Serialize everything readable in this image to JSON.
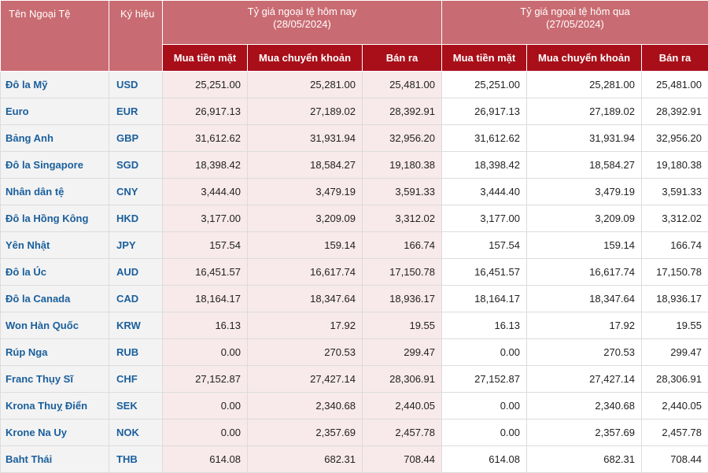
{
  "header": {
    "currency_name": "Tên Ngoại Tệ",
    "symbol": "Ký hiệu",
    "today_title": "Tỷ giá ngoại tệ hôm nay",
    "today_date": "(28/05/2024)",
    "yesterday_title": "Tỷ giá ngoại tệ hôm qua",
    "yesterday_date": "(27/05/2024)",
    "cash_buy": "Mua tiền mặt",
    "transfer_buy": "Mua chuyển khoản",
    "sell": "Bán ra"
  },
  "rows": [
    {
      "name": "Đô la Mỹ",
      "code": "USD",
      "today": [
        "25,251.00",
        "25,281.00",
        "25,481.00"
      ],
      "yesterday": [
        "25,251.00",
        "25,281.00",
        "25,481.00"
      ]
    },
    {
      "name": "Euro",
      "code": "EUR",
      "today": [
        "26,917.13",
        "27,189.02",
        "28,392.91"
      ],
      "yesterday": [
        "26,917.13",
        "27,189.02",
        "28,392.91"
      ]
    },
    {
      "name": "Bảng Anh",
      "code": "GBP",
      "today": [
        "31,612.62",
        "31,931.94",
        "32,956.20"
      ],
      "yesterday": [
        "31,612.62",
        "31,931.94",
        "32,956.20"
      ]
    },
    {
      "name": "Đô la Singapore",
      "code": "SGD",
      "today": [
        "18,398.42",
        "18,584.27",
        "19,180.38"
      ],
      "yesterday": [
        "18,398.42",
        "18,584.27",
        "19,180.38"
      ]
    },
    {
      "name": "Nhân dân tệ",
      "code": "CNY",
      "today": [
        "3,444.40",
        "3,479.19",
        "3,591.33"
      ],
      "yesterday": [
        "3,444.40",
        "3,479.19",
        "3,591.33"
      ]
    },
    {
      "name": "Đô la Hồng Kông",
      "code": "HKD",
      "today": [
        "3,177.00",
        "3,209.09",
        "3,312.02"
      ],
      "yesterday": [
        "3,177.00",
        "3,209.09",
        "3,312.02"
      ]
    },
    {
      "name": "Yên Nhật",
      "code": "JPY",
      "today": [
        "157.54",
        "159.14",
        "166.74"
      ],
      "yesterday": [
        "157.54",
        "159.14",
        "166.74"
      ]
    },
    {
      "name": "Đô la Úc",
      "code": "AUD",
      "today": [
        "16,451.57",
        "16,617.74",
        "17,150.78"
      ],
      "yesterday": [
        "16,451.57",
        "16,617.74",
        "17,150.78"
      ]
    },
    {
      "name": "Đô la Canada",
      "code": "CAD",
      "today": [
        "18,164.17",
        "18,347.64",
        "18,936.17"
      ],
      "yesterday": [
        "18,164.17",
        "18,347.64",
        "18,936.17"
      ]
    },
    {
      "name": "Won Hàn Quốc",
      "code": "KRW",
      "today": [
        "16.13",
        "17.92",
        "19.55"
      ],
      "yesterday": [
        "16.13",
        "17.92",
        "19.55"
      ]
    },
    {
      "name": "Rúp Nga",
      "code": "RUB",
      "today": [
        "0.00",
        "270.53",
        "299.47"
      ],
      "yesterday": [
        "0.00",
        "270.53",
        "299.47"
      ]
    },
    {
      "name": "Franc Thụy Sĩ",
      "code": "CHF",
      "today": [
        "27,152.87",
        "27,427.14",
        "28,306.91"
      ],
      "yesterday": [
        "27,152.87",
        "27,427.14",
        "28,306.91"
      ]
    },
    {
      "name": "Krona Thuỵ Điển",
      "code": "SEK",
      "today": [
        "0.00",
        "2,340.68",
        "2,440.05"
      ],
      "yesterday": [
        "0.00",
        "2,340.68",
        "2,440.05"
      ]
    },
    {
      "name": "Krone Na Uy",
      "code": "NOK",
      "today": [
        "0.00",
        "2,357.69",
        "2,457.78"
      ],
      "yesterday": [
        "0.00",
        "2,357.69",
        "2,457.78"
      ]
    },
    {
      "name": "Baht Thái",
      "code": "THB",
      "today": [
        "614.08",
        "682.31",
        "708.44"
      ],
      "yesterday": [
        "614.08",
        "682.31",
        "708.44"
      ]
    }
  ]
}
